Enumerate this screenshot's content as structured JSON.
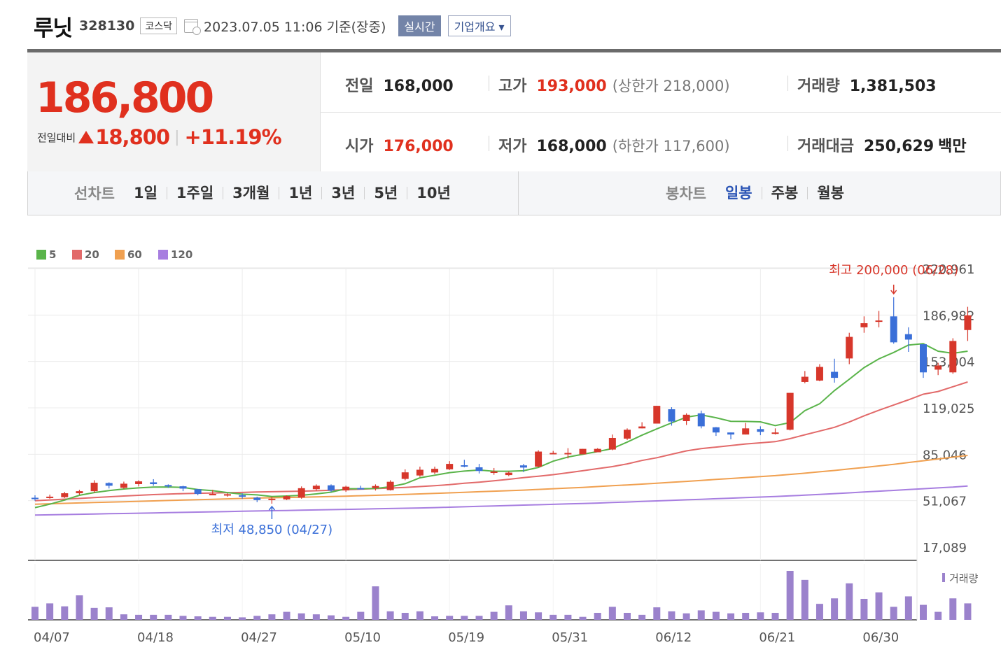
{
  "header": {
    "name": "루닛",
    "code": "328130",
    "market": "코스닥",
    "time": "2023.07.05 11:06  기준(장중)",
    "live_label": "실시간",
    "corp_label": "기업개요 ▾"
  },
  "price": {
    "current": "186,800",
    "change_label": "전일대비",
    "change": "18,800",
    "change_pct": "+11.19%"
  },
  "stats": {
    "prev_label": "전일",
    "prev": "168,000",
    "high_label": "고가",
    "high": "193,000",
    "upper_limit": "(상한가 218,000)",
    "volume_label": "거래량",
    "volume": "1,381,503",
    "open_label": "시가",
    "open": "176,000",
    "low_label": "저가",
    "low": "168,000",
    "lower_limit": "(하한가 117,600)",
    "amount_label": "거래대금",
    "amount": "250,629",
    "amount_unit": "백만"
  },
  "tabs": {
    "line_label": "선차트",
    "line_periods": [
      "1일",
      "1주일",
      "3개월",
      "1년",
      "3년",
      "5년",
      "10년"
    ],
    "candle_label": "봉차트",
    "candle_periods": [
      "일봉",
      "주봉",
      "월봉"
    ],
    "candle_active": "일봉"
  },
  "colors": {
    "up": "#d7372b",
    "down": "#3a6fd8",
    "ma5": "#5ab44a",
    "ma20": "#e26a6a",
    "ma60": "#f0a050",
    "ma120": "#a77ee0",
    "volume": "#9b82cc"
  },
  "chart_data": {
    "type": "candlestick",
    "legend": [
      "5",
      "20",
      "60",
      "120"
    ],
    "y_ticks": [
      "220,961",
      "186,982",
      "153,004",
      "119,025",
      "85,046",
      "51,067",
      "17,089"
    ],
    "ylim": [
      17089,
      220961
    ],
    "x_labels": [
      "04/07",
      "04/18",
      "04/27",
      "05/10",
      "05/19",
      "05/31",
      "06/12",
      "06/21",
      "06/30"
    ],
    "high_annotation": "최고 200,000 (06/28)",
    "low_annotation": "최저 48,850 (04/27)",
    "volume_label": "거래량",
    "candles": [
      [
        53200,
        52500,
        55000,
        51000
      ],
      [
        54000,
        54000,
        55500,
        52500
      ],
      [
        53600,
        56500,
        57500,
        53000
      ],
      [
        56500,
        58000,
        59000,
        55500
      ],
      [
        58000,
        64200,
        66000,
        57000
      ],
      [
        64000,
        62000,
        64500,
        60000
      ],
      [
        60500,
        63500,
        65000,
        59800
      ],
      [
        63200,
        65200,
        66000,
        61500
      ],
      [
        64500,
        63200,
        66800,
        62000
      ],
      [
        62500,
        62000,
        63000,
        60500
      ],
      [
        61600,
        59900,
        62000,
        58000
      ],
      [
        59500,
        56000,
        59500,
        55000
      ],
      [
        56000,
        56000,
        59000,
        55500
      ],
      [
        55300,
        55800,
        56500,
        54000
      ],
      [
        55000,
        54200,
        56500,
        52500
      ],
      [
        53300,
        51500,
        54000,
        50000
      ],
      [
        52500,
        52500,
        54000,
        48850
      ],
      [
        52000,
        54400,
        55000,
        51500
      ],
      [
        53300,
        60200,
        61500,
        52500
      ],
      [
        59500,
        62000,
        63000,
        58500
      ],
      [
        62300,
        58500,
        63000,
        57500
      ],
      [
        58600,
        61300,
        62000,
        57500
      ],
      [
        60300,
        59700,
        62000,
        59500
      ],
      [
        60300,
        61800,
        63000,
        58500
      ],
      [
        58800,
        64900,
        66000,
        58500
      ],
      [
        67000,
        71800,
        74000,
        66000
      ],
      [
        69500,
        73700,
        76000,
        68500
      ],
      [
        71700,
        74400,
        76000,
        70500
      ],
      [
        74000,
        78000,
        80000,
        73500
      ],
      [
        77000,
        76000,
        81000,
        75500
      ],
      [
        75500,
        72800,
        78000,
        71000
      ],
      [
        71700,
        72400,
        75000,
        70000
      ],
      [
        69800,
        71600,
        72500,
        69000
      ],
      [
        76900,
        75300,
        78000,
        72000
      ],
      [
        76000,
        87000,
        88000,
        75500
      ],
      [
        86000,
        86000,
        87500,
        85000
      ],
      [
        85900,
        86000,
        89500,
        82000
      ],
      [
        85000,
        89000,
        89000,
        85000
      ],
      [
        86500,
        89000,
        89500,
        86500
      ],
      [
        88500,
        97000,
        99500,
        88000
      ],
      [
        96500,
        103000,
        104000,
        95500
      ],
      [
        104000,
        105400,
        108500,
        104000
      ],
      [
        107500,
        120500,
        120500,
        107500
      ],
      [
        118000,
        109000,
        119500,
        106000
      ],
      [
        109300,
        114000,
        115000,
        106500
      ],
      [
        115000,
        105500,
        117000,
        104000
      ],
      [
        104800,
        101000,
        105000,
        98500
      ],
      [
        101000,
        99500,
        101000,
        96000
      ],
      [
        99500,
        104000,
        108000,
        99500
      ],
      [
        103500,
        101500,
        105500,
        99000
      ],
      [
        100800,
        101000,
        104000,
        99500
      ],
      [
        103000,
        130000,
        130000,
        102500
      ],
      [
        138000,
        141800,
        146000,
        137000
      ],
      [
        139000,
        149000,
        151000,
        138500
      ],
      [
        145400,
        141000,
        155000,
        137500
      ],
      [
        155200,
        171000,
        174000,
        151000
      ],
      [
        178000,
        181000,
        186000,
        174000
      ],
      [
        182000,
        183000,
        190000,
        178000
      ],
      [
        186000,
        167000,
        200000,
        166000
      ],
      [
        173000,
        169000,
        178000,
        160000
      ],
      [
        165600,
        145000,
        165600,
        141000
      ],
      [
        147000,
        150000,
        152000,
        143000
      ],
      [
        145000,
        168000,
        170000,
        144000
      ],
      [
        176000,
        186800,
        193000,
        168000
      ]
    ],
    "ma5": [
      46000,
      48500,
      51500,
      55000,
      57000,
      58500,
      59600,
      60400,
      61000,
      61100,
      60800,
      59200,
      58400,
      57000,
      55800,
      55300,
      54100,
      54500,
      55000,
      56000,
      57300,
      59800,
      59800,
      60000,
      61300,
      63500,
      67800,
      69700,
      71600,
      72700,
      73500,
      72600,
      72600,
      73000,
      75400,
      80000,
      83000,
      85000,
      87000,
      89200,
      94000,
      99000,
      103600,
      108000,
      112200,
      113900,
      111800,
      109200,
      109100,
      108800,
      106000,
      108200,
      117000,
      122000,
      131700,
      140000,
      148500,
      154900,
      159600,
      165000,
      166000,
      160500,
      159000,
      160500
    ],
    "ma20": [
      51000,
      51600,
      52200,
      52700,
      53300,
      53900,
      54500,
      55000,
      55500,
      55900,
      56200,
      56500,
      56700,
      56900,
      57100,
      57400,
      57600,
      57800,
      58000,
      58300,
      58700,
      59100,
      59500,
      59900,
      60300,
      60800,
      61400,
      62000,
      62800,
      63800,
      64600,
      65600,
      66700,
      67900,
      69000,
      70100,
      71500,
      73000,
      74500,
      76000,
      78000,
      80500,
      82500,
      85000,
      87500,
      89200,
      90300,
      91400,
      92600,
      93400,
      94300,
      96500,
      99300,
      102000,
      104800,
      108700,
      113200,
      117300,
      121100,
      124900,
      129000,
      131000,
      134500,
      138000
    ],
    "ma60": [
      48500,
      48800,
      49100,
      49400,
      49700,
      50000,
      50300,
      50600,
      50900,
      51200,
      51500,
      51800,
      52100,
      52400,
      52700,
      53000,
      53200,
      53400,
      53600,
      53800,
      54100,
      54400,
      54700,
      55000,
      55300,
      55600,
      56000,
      56400,
      56800,
      57200,
      57600,
      58000,
      58400,
      58800,
      59300,
      59800,
      60300,
      60800,
      61400,
      62000,
      62600,
      63200,
      63800,
      64500,
      65200,
      65900,
      66600,
      67300,
      68000,
      68700,
      69400,
      70300,
      71200,
      72200,
      73200,
      74300,
      75400,
      76500,
      77700,
      79000,
      80300,
      81600,
      82900,
      84200
    ],
    "ma120": [
      40500,
      40700,
      40900,
      41100,
      41300,
      41500,
      41700,
      41900,
      42100,
      42300,
      42500,
      42700,
      42900,
      43100,
      43300,
      43500,
      43700,
      43900,
      44100,
      44300,
      44500,
      44700,
      44900,
      45100,
      45300,
      45500,
      45700,
      46000,
      46300,
      46600,
      46900,
      47200,
      47500,
      47800,
      48100,
      48400,
      48700,
      49000,
      49300,
      49700,
      50100,
      50500,
      50900,
      51300,
      51700,
      52100,
      52500,
      52900,
      53300,
      53700,
      54100,
      54600,
      55100,
      55600,
      56200,
      56800,
      57400,
      58000,
      58600,
      59200,
      59800,
      60400,
      61000,
      61800
    ],
    "volume": [
      26,
      33,
      27,
      49,
      24,
      25,
      11,
      10,
      10,
      10,
      8,
      7,
      6,
      6,
      5,
      8,
      11,
      16,
      13,
      11,
      9,
      6,
      16,
      67,
      17,
      14,
      17,
      7,
      8,
      8,
      8,
      16,
      29,
      17,
      15,
      10,
      10,
      6,
      14,
      26,
      14,
      10,
      25,
      17,
      13,
      19,
      16,
      13,
      14,
      15,
      14,
      98,
      80,
      32,
      43,
      73,
      42,
      55,
      26,
      47,
      30,
      16,
      43,
      33
    ]
  }
}
